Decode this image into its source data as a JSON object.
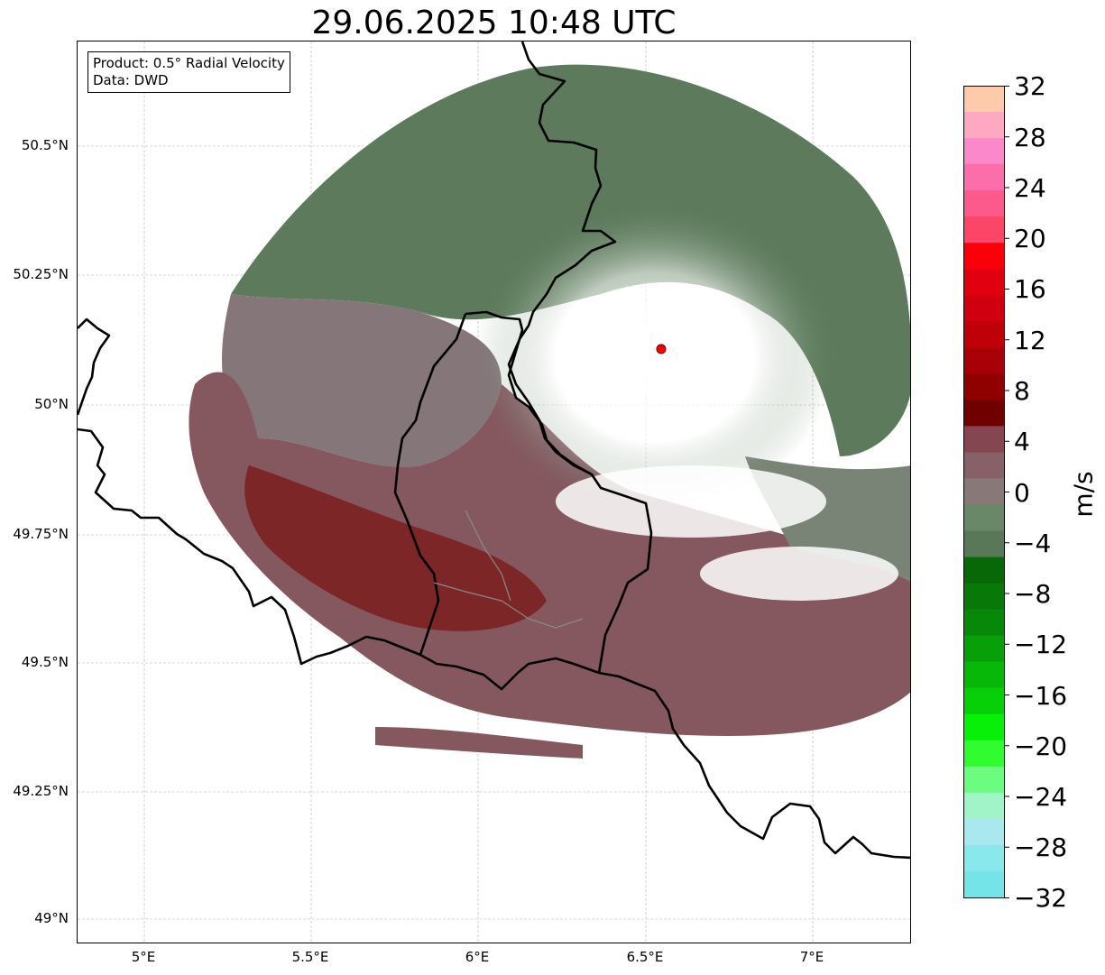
{
  "title": "29.06.2025 10:48 UTC",
  "info": {
    "product": "Product: 0.5° Radial Velocity",
    "source": "Data: DWD"
  },
  "axes": {
    "lat_ticks": [
      "50.5°N",
      "50.25°N",
      "50°N",
      "49.75°N",
      "49.5°N",
      "49.25°N",
      "49°N"
    ],
    "lon_ticks": [
      "5°E",
      "5.5°E",
      "6°E",
      "6.5°E",
      "7°E"
    ]
  },
  "colorbar": {
    "unit": "m/s",
    "ticks": [
      "32",
      "28",
      "24",
      "20",
      "16",
      "12",
      "8",
      "4",
      "0",
      "−4",
      "−8",
      "−12",
      "−16",
      "−20",
      "−24",
      "−28",
      "−32"
    ],
    "colors_top_to_bottom": [
      "#fecbaa",
      "#fea8c2",
      "#fc88cc",
      "#fc6eaa",
      "#fc5a8c",
      "#fc4668",
      "#fa0008",
      "#e00010",
      "#d00010",
      "#c00008",
      "#a80008",
      "#900000",
      "#700000",
      "#844650",
      "#886068",
      "#887878",
      "#688868",
      "#587858",
      "#086808",
      "#087808",
      "#088808",
      "#08a008",
      "#08b808",
      "#08d008",
      "#08f008",
      "#30fc30",
      "#6cfc80",
      "#a0f4c8",
      "#a8e8ee",
      "#88e8ec",
      "#74e4e8"
    ]
  },
  "radar_site_color": "#ff0000",
  "map_colors": {
    "outbound_strong": "#7a1515",
    "outbound_weak": "#855860",
    "near_zero": "#85767a",
    "inbound_weak": "#5d7b5c",
    "inbound_strong": "#106a10"
  }
}
